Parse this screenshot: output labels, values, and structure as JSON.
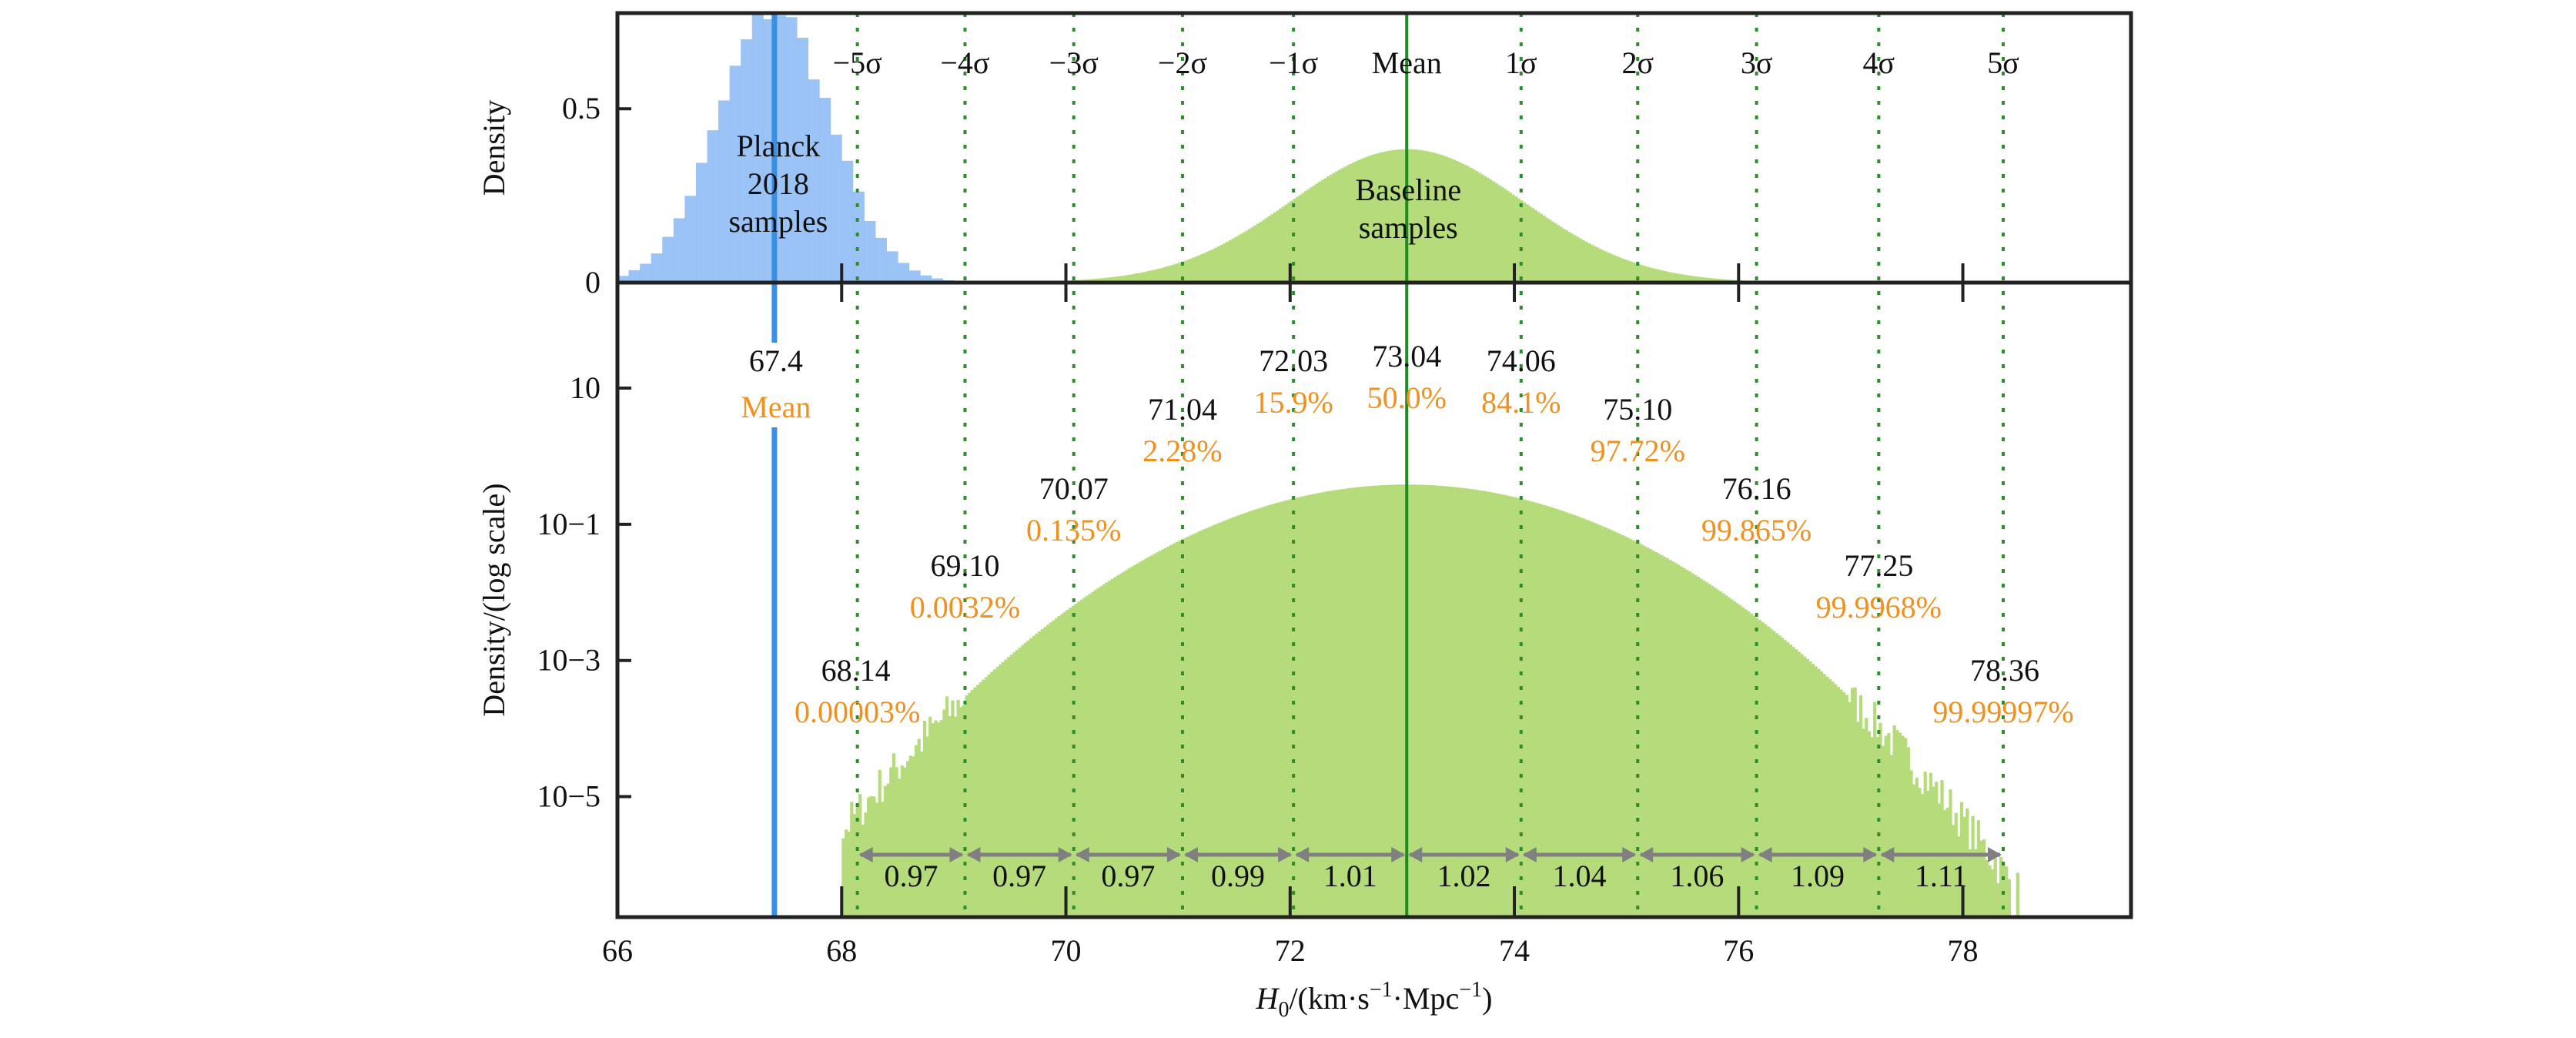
{
  "chart_data": {
    "type": "bar",
    "xlabel": "H0/(km·s−1·Mpc−1)",
    "xlim": [
      66,
      79.5
    ],
    "x_ticks": [
      "66",
      "68",
      "70",
      "72",
      "74",
      "76",
      "78"
    ],
    "panels": [
      {
        "scale": "linear",
        "ylabel": "Density",
        "ylim": [
          0,
          0.775
        ],
        "y_ticks": [
          {
            "value": 0,
            "label": "0"
          },
          {
            "value": 0.5,
            "label": "0.5"
          }
        ]
      },
      {
        "scale": "log",
        "ylabel": "Density/(log scale)",
        "ylim": [
          1.7e-07,
          355
        ],
        "y_ticks": [
          {
            "value": 10,
            "label": "10"
          },
          {
            "value": 0.1,
            "label": "10−1"
          },
          {
            "value": 0.001,
            "label": "10−3"
          },
          {
            "value": 1e-05,
            "label": "10−5"
          }
        ]
      }
    ],
    "series": [
      {
        "name": "Planck 2018 samples",
        "label_lines": [
          "Planck",
          "2018",
          "samples"
        ],
        "mean": 67.4,
        "std": 0.5,
        "color": "#8ab8f5",
        "mean_color": "#3a8ee6",
        "mean_value_label": "67.4",
        "mean_label": "Mean"
      },
      {
        "name": "Baseline samples",
        "label_lines": [
          "Baseline",
          "samples"
        ],
        "mean": 73.04,
        "std": 1.04,
        "range": [
          68.0,
          78.7
        ],
        "color": "#b5db7a",
        "mean_color": "#1e8c1e"
      }
    ],
    "sigma_lines": [
      {
        "label": "−5σ",
        "x": 68.14,
        "value": "68.14",
        "percentile": "0.00003%"
      },
      {
        "label": "−4σ",
        "x": 69.1,
        "value": "69.10",
        "percentile": "0.0032%"
      },
      {
        "label": "−3σ",
        "x": 70.07,
        "value": "70.07",
        "percentile": "0.135%"
      },
      {
        "label": "−2σ",
        "x": 71.04,
        "value": "71.04",
        "percentile": "2.28%"
      },
      {
        "label": "−1σ",
        "x": 72.03,
        "value": "72.03",
        "percentile": "15.9%"
      },
      {
        "label": "Mean",
        "x": 73.04,
        "value": "73.04",
        "percentile": "50.0%"
      },
      {
        "label": "1σ",
        "x": 74.06,
        "value": "74.06",
        "percentile": "84.1%"
      },
      {
        "label": "2σ",
        "x": 75.1,
        "value": "75.10",
        "percentile": "97.72%"
      },
      {
        "label": "3σ",
        "x": 76.16,
        "value": "76.16",
        "percentile": "99.865%"
      },
      {
        "label": "4σ",
        "x": 77.25,
        "value": "77.25",
        "percentile": "99.9968%"
      },
      {
        "label": "5σ",
        "x": 78.36,
        "value": "78.36",
        "percentile": "99.99997%"
      }
    ],
    "spacings": [
      "0.97",
      "0.97",
      "0.97",
      "0.99",
      "1.01",
      "1.02",
      "1.04",
      "1.06",
      "1.09",
      "1.11"
    ],
    "colors": {
      "sigma_line": "#2e8b2e",
      "percentile_text": "#f0901e",
      "arrow": "#808080"
    }
  }
}
